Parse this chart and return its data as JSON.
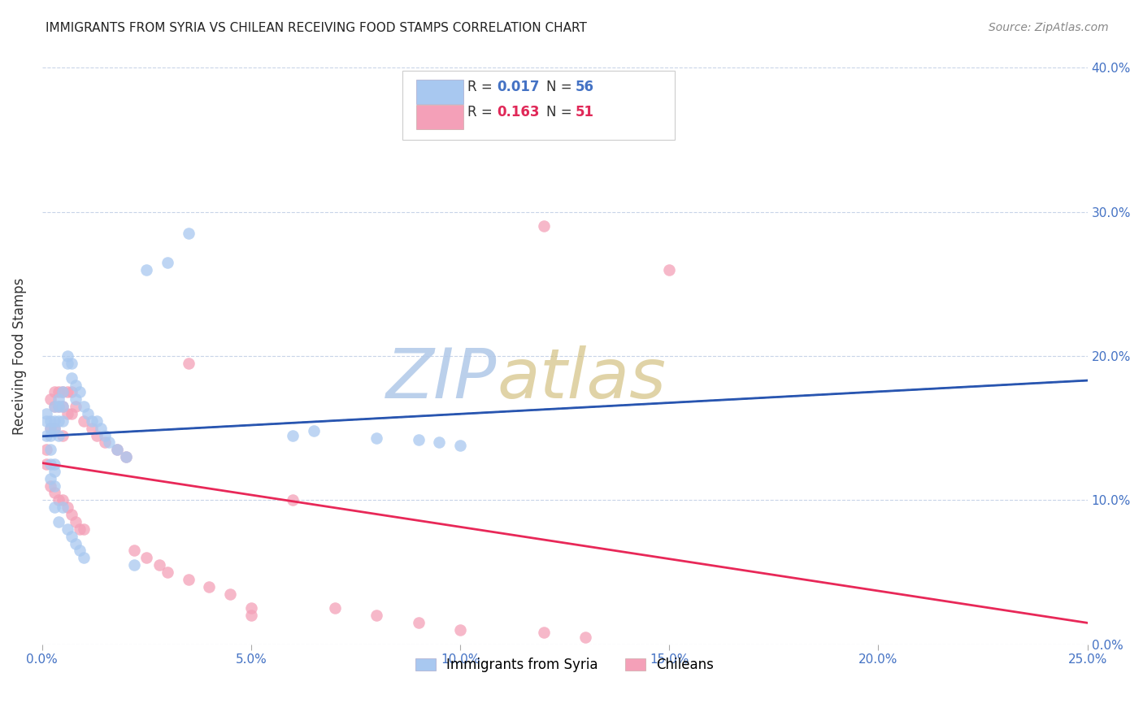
{
  "title": "IMMIGRANTS FROM SYRIA VS CHILEAN RECEIVING FOOD STAMPS CORRELATION CHART",
  "source": "Source: ZipAtlas.com",
  "ylabel": "Receiving Food Stamps",
  "legend_label1": "Immigrants from Syria",
  "legend_label2": "Chileans",
  "r1": "0.017",
  "n1": "56",
  "r2": "0.163",
  "n2": "51",
  "xlim": [
    0.0,
    0.25
  ],
  "ylim": [
    0.0,
    0.4
  ],
  "xticks": [
    0.0,
    0.05,
    0.1,
    0.15,
    0.2,
    0.25
  ],
  "yticks": [
    0.0,
    0.1,
    0.2,
    0.3,
    0.4
  ],
  "xtick_labels": [
    "0.0%",
    "5.0%",
    "10.0%",
    "15.0%",
    "20.0%",
    "25.0%"
  ],
  "ytick_labels_right": [
    "0.0%",
    "10.0%",
    "20.0%",
    "30.0%",
    "40.0%"
  ],
  "color_syria": "#a8c8f0",
  "color_chile": "#f4a0b8",
  "line_color_syria": "#2855b0",
  "line_color_chile": "#e82858",
  "background_color": "#ffffff",
  "grid_color": "#c8d4e8",
  "syria_x": [
    0.001,
    0.001,
    0.001,
    0.002,
    0.002,
    0.002,
    0.002,
    0.002,
    0.002,
    0.003,
    0.003,
    0.003,
    0.003,
    0.003,
    0.003,
    0.003,
    0.004,
    0.004,
    0.004,
    0.004,
    0.004,
    0.005,
    0.005,
    0.005,
    0.005,
    0.006,
    0.006,
    0.006,
    0.007,
    0.007,
    0.007,
    0.008,
    0.008,
    0.008,
    0.009,
    0.009,
    0.01,
    0.01,
    0.011,
    0.012,
    0.013,
    0.014,
    0.015,
    0.016,
    0.018,
    0.02,
    0.022,
    0.025,
    0.03,
    0.035,
    0.06,
    0.065,
    0.08,
    0.09,
    0.095,
    0.1
  ],
  "syria_y": [
    0.155,
    0.16,
    0.145,
    0.155,
    0.15,
    0.145,
    0.135,
    0.125,
    0.115,
    0.165,
    0.155,
    0.15,
    0.125,
    0.12,
    0.11,
    0.095,
    0.17,
    0.165,
    0.155,
    0.145,
    0.085,
    0.175,
    0.165,
    0.155,
    0.095,
    0.2,
    0.195,
    0.08,
    0.195,
    0.185,
    0.075,
    0.18,
    0.17,
    0.07,
    0.175,
    0.065,
    0.165,
    0.06,
    0.16,
    0.155,
    0.155,
    0.15,
    0.145,
    0.14,
    0.135,
    0.13,
    0.055,
    0.26,
    0.265,
    0.285,
    0.145,
    0.148,
    0.143,
    0.142,
    0.14,
    0.138
  ],
  "chile_x": [
    0.001,
    0.001,
    0.002,
    0.002,
    0.002,
    0.003,
    0.003,
    0.003,
    0.003,
    0.004,
    0.004,
    0.004,
    0.005,
    0.005,
    0.005,
    0.005,
    0.006,
    0.006,
    0.006,
    0.007,
    0.007,
    0.007,
    0.008,
    0.008,
    0.009,
    0.01,
    0.01,
    0.012,
    0.013,
    0.015,
    0.018,
    0.02,
    0.022,
    0.025,
    0.028,
    0.03,
    0.035,
    0.04,
    0.045,
    0.05,
    0.06,
    0.07,
    0.08,
    0.09,
    0.1,
    0.12,
    0.13,
    0.15,
    0.035,
    0.05,
    0.12
  ],
  "chile_y": [
    0.135,
    0.125,
    0.17,
    0.15,
    0.11,
    0.175,
    0.165,
    0.15,
    0.105,
    0.175,
    0.165,
    0.1,
    0.175,
    0.165,
    0.145,
    0.1,
    0.175,
    0.16,
    0.095,
    0.175,
    0.16,
    0.09,
    0.165,
    0.085,
    0.08,
    0.155,
    0.08,
    0.15,
    0.145,
    0.14,
    0.135,
    0.13,
    0.065,
    0.06,
    0.055,
    0.05,
    0.045,
    0.04,
    0.035,
    0.025,
    0.1,
    0.025,
    0.02,
    0.015,
    0.01,
    0.008,
    0.005,
    0.26,
    0.195,
    0.02,
    0.29
  ]
}
